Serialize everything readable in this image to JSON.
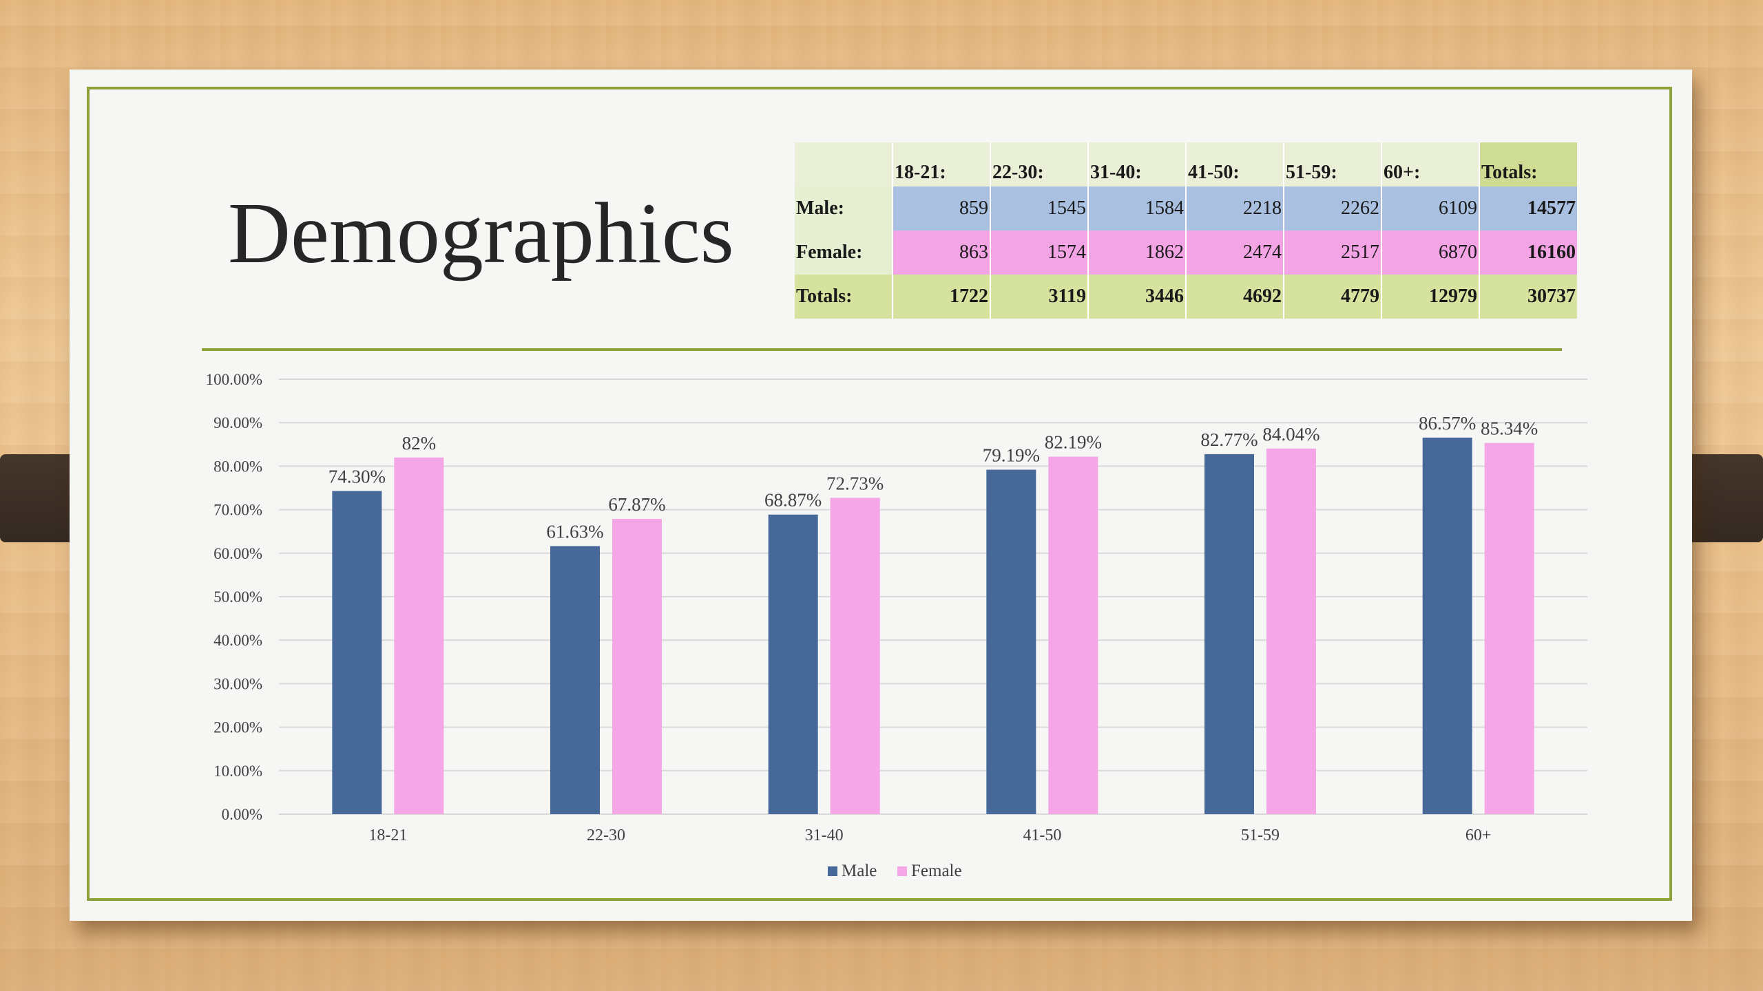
{
  "title": "Demographics",
  "table": {
    "header": [
      "",
      "18-21:",
      "22-30:",
      "31-40:",
      "41-50:",
      "51-59:",
      "60+:",
      "Totals:"
    ],
    "rows": [
      {
        "label": "Male:",
        "values": [
          "859",
          "1545",
          "1584",
          "2218",
          "2262",
          "6109",
          "14577"
        ]
      },
      {
        "label": "Female:",
        "values": [
          "863",
          "1574",
          "1862",
          "2474",
          "2517",
          "6870",
          "16160"
        ]
      },
      {
        "label": "Totals:",
        "values": [
          "1722",
          "3119",
          "3446",
          "4692",
          "4779",
          "12979",
          "30737"
        ]
      }
    ]
  },
  "colors": {
    "male": "#46699a",
    "female": "#f4a6e6",
    "accent": "#8ea23c",
    "gridline": "#d9d9d9"
  },
  "chart_data": {
    "type": "bar",
    "title": "",
    "xlabel": "",
    "ylabel": "",
    "categories": [
      "18-21",
      "22-30",
      "31-40",
      "41-50",
      "51-59",
      "60+"
    ],
    "series": [
      {
        "name": "Male",
        "values": [
          74.3,
          61.63,
          68.87,
          79.19,
          82.77,
          86.57
        ],
        "labels": [
          "74.30%",
          "61.63%",
          "68.87%",
          "79.19%",
          "82.77%",
          "86.57%"
        ]
      },
      {
        "name": "Female",
        "values": [
          82,
          67.87,
          72.73,
          82.19,
          84.04,
          85.34
        ],
        "labels": [
          "82%",
          "67.87%",
          "72.73%",
          "82.19%",
          "84.04%",
          "85.34%"
        ]
      }
    ],
    "ylim": [
      0,
      100
    ],
    "yticks": [
      "0.00%",
      "10.00%",
      "20.00%",
      "30.00%",
      "40.00%",
      "50.00%",
      "60.00%",
      "70.00%",
      "80.00%",
      "90.00%",
      "100.00%"
    ],
    "grid": true,
    "legend": "bottom"
  }
}
